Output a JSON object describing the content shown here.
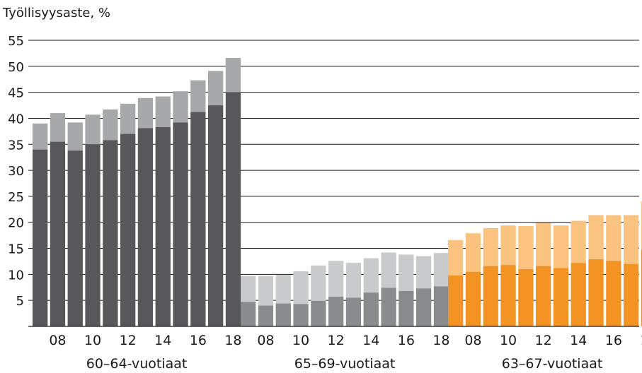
{
  "chart_data": {
    "type": "bar",
    "title": "Työllisyysaste, %",
    "ylim": [
      0,
      55
    ],
    "yticks": [
      "5",
      "10",
      "15",
      "20",
      "25",
      "30",
      "35",
      "40",
      "45",
      "50",
      "55"
    ],
    "grid": true,
    "years": [
      "07",
      "08",
      "09",
      "10",
      "11",
      "12",
      "13",
      "14",
      "15",
      "16",
      "17",
      "18"
    ],
    "xtick_labels": [
      "08",
      "10",
      "12",
      "14",
      "16",
      "18"
    ],
    "groups": [
      {
        "label": "60–64-vuotiaat",
        "colors": {
          "lower": "#58585a",
          "upper": "#a7a8aa"
        },
        "lower": [
          34.0,
          35.5,
          33.8,
          35.0,
          35.8,
          37.0,
          38.1,
          38.3,
          39.2,
          41.2,
          42.5,
          45.0
        ],
        "total": [
          39.0,
          41.0,
          39.2,
          40.7,
          41.7,
          42.8,
          43.9,
          44.2,
          45.2,
          47.3,
          49.1,
          51.6
        ]
      },
      {
        "label": "65–69-vuotiaat",
        "colors": {
          "lower": "#8a8b8d",
          "upper": "#c9cacc"
        },
        "lower": [
          4.7,
          4.0,
          4.4,
          4.3,
          4.9,
          5.7,
          5.5,
          6.5,
          7.4,
          6.8,
          7.3,
          7.7
        ],
        "total": [
          9.7,
          9.7,
          9.9,
          10.6,
          11.7,
          12.6,
          12.2,
          13.1,
          14.2,
          13.8,
          13.5,
          14.1
        ]
      },
      {
        "label": "63–67-vuotiaat",
        "colors": {
          "lower": "#f39324",
          "upper": "#fbc380"
        },
        "lower": [
          9.8,
          10.5,
          11.6,
          11.8,
          11.0,
          11.6,
          11.2,
          12.2,
          12.9,
          12.6,
          12.0,
          14.7
        ],
        "total": [
          16.6,
          17.9,
          18.9,
          19.4,
          19.3,
          19.9,
          19.4,
          20.3,
          21.4,
          21.4,
          21.4,
          24.1
        ]
      }
    ]
  }
}
